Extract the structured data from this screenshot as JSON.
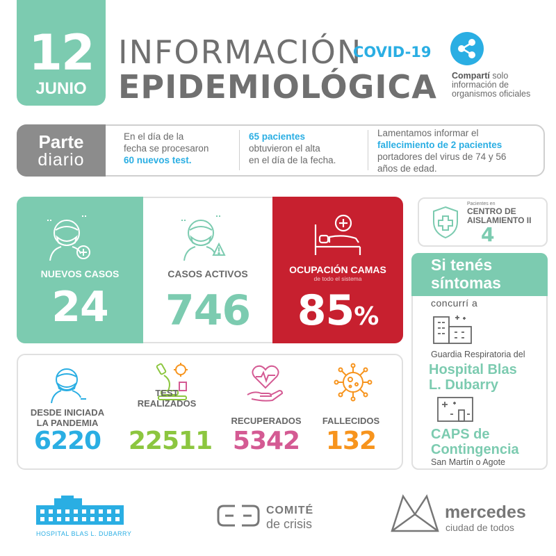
{
  "header": {
    "day": "12",
    "month": "JUNIO",
    "title_line1": "INFORMACIÓN",
    "covid_tag": "COVID-19",
    "title_line2": "EPIDEMIOLÓGICA",
    "share_bold": "Compartí",
    "share_rest1": " solo",
    "share_line2": "información de",
    "share_line3": "organismos oficiales"
  },
  "parte_diario": {
    "label_bold": "Parte",
    "label_regular": "diario",
    "col1_line1": "En el día de la",
    "col1_line2": "fecha se procesaron",
    "col1_highlight": "60 nuevos test.",
    "col2_highlight": "65 pacientes",
    "col2_line2": "obtuvieron el alta",
    "col2_line3": "en el día de la fecha.",
    "col3_line1": "Lamentamos informar el",
    "col3_highlight": "fallecimiento de 2 pacientes",
    "col3_line3": "portadores del virus de 74 y 56",
    "col3_line4": "años de edad."
  },
  "stats": {
    "nuevos_label": "NUEVOS  CASOS",
    "nuevos_value": "24",
    "activos_label": "CASOS ACTIVOS",
    "activos_value": "746",
    "camas_label": "OCUPACIÓN CAMAS",
    "camas_sub": "de todo el sistema",
    "camas_value": "85",
    "camas_unit": "%"
  },
  "aislamiento": {
    "small": "Pacientes en",
    "title_line1": "CENTRO DE",
    "title_line2": "AISLAMIENTO II",
    "value": "4"
  },
  "sintomas": {
    "title_line1": "Si tenés",
    "title_line2": "síntomas",
    "concurri": "concurrí a",
    "guardia": "Guardia Respiratoria del",
    "hosp_line1": "Hospital Blas",
    "hosp_line2": "L. Dubarry",
    "caps_line1": "CAPS de",
    "caps_line2": "Contingencia",
    "caps_address": "San Martín o Agote"
  },
  "totals": [
    {
      "label_line1": "DESDE INICIADA",
      "label_line2": "LA PANDEMIA",
      "value": "6220",
      "color": "#2aaee3"
    },
    {
      "label_line1": "TEST",
      "label_line2": "REALIZADOS",
      "value": "22511",
      "color": "#8cc63f"
    },
    {
      "label_line1": "RECUPERADOS",
      "label_line2": "",
      "value": "5342",
      "color": "#d45a93"
    },
    {
      "label_line1": "FALLECIDOS",
      "label_line2": "",
      "value": "132",
      "color": "#f7941d"
    }
  ],
  "footer": {
    "hospital_logo_text": "HOSPITAL BLAS L. DUBARRY",
    "comite_line1": "COMITÉ",
    "comite_line2": "de crisis",
    "mercedes_line1": "mercedes",
    "mercedes_line2": "ciudad de todos"
  },
  "colors": {
    "green": "#7ccbb0",
    "red": "#c7202f",
    "blue": "#2aaee3",
    "gray": "#707070"
  },
  "icons": [
    "share-icon",
    "masked-person-plus-icon",
    "masked-person-alert-icon",
    "hospital-bed-icon",
    "shield-cross-icon",
    "building-icon",
    "clinic-icon",
    "masked-face-icon",
    "microscope-icon",
    "heart-hand-icon",
    "virus-icon",
    "hospital-logo",
    "comite-logo",
    "mercedes-logo"
  ]
}
